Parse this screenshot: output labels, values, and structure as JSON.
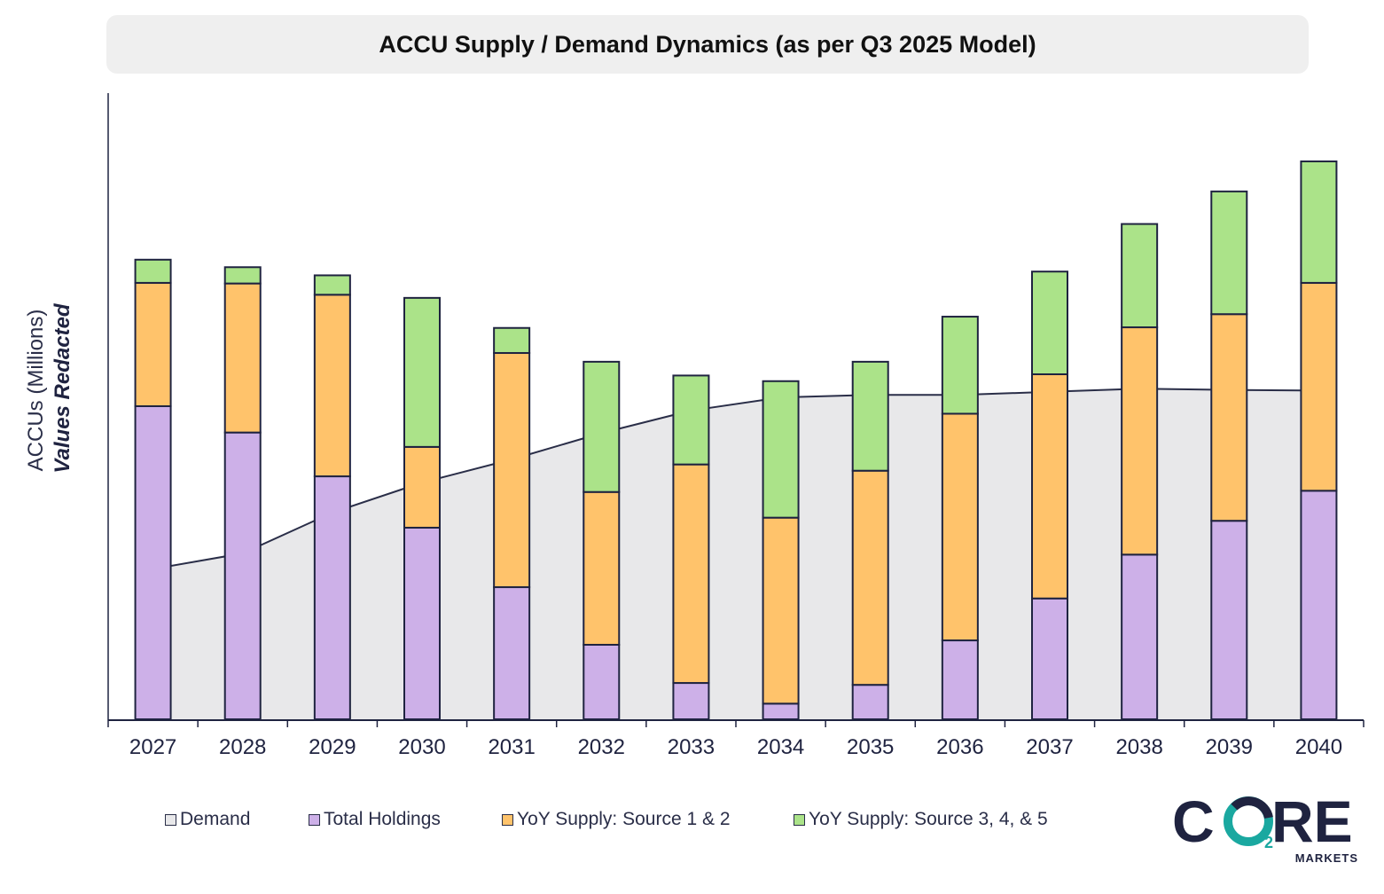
{
  "chart_data": {
    "type": "bar",
    "title": "ACCU Supply / Demand Dynamics (as per Q3 2025 Model)",
    "ylabel": "ACCUs (Millions)",
    "ylabel_note": "Values Redacted",
    "xlabel": "",
    "categories": [
      "2027",
      "2028",
      "2029",
      "2030",
      "2031",
      "2032",
      "2033",
      "2034",
      "2035",
      "2036",
      "2037",
      "2038",
      "2039",
      "2040"
    ],
    "ylim": [
      0,
      100
    ],
    "stacked": true,
    "series": [
      {
        "name": "Total Holdings",
        "color": "#cdb0e8",
        "values": [
          50.0,
          45.8,
          38.8,
          30.6,
          21.1,
          11.9,
          5.8,
          2.5,
          5.5,
          12.6,
          19.3,
          26.3,
          31.7,
          36.5
        ]
      },
      {
        "name": "YoY Supply: Source 1 & 2",
        "color": "#ffc36b",
        "values": [
          19.7,
          23.8,
          29.0,
          12.9,
          37.4,
          24.4,
          34.9,
          29.7,
          34.2,
          36.2,
          35.8,
          36.3,
          33.0,
          33.2
        ]
      },
      {
        "name": "YoY Supply: Source 3, 4, & 5",
        "color": "#abe389",
        "values": [
          3.7,
          2.6,
          3.1,
          23.8,
          4.0,
          20.8,
          14.2,
          21.8,
          17.4,
          15.5,
          16.4,
          16.5,
          19.6,
          19.4
        ]
      }
    ],
    "demand": {
      "name": "Demand",
      "color": "#e8e8ea",
      "values": [
        24.0,
        26.5,
        33.0,
        37.8,
        41.5,
        45.7,
        49.3,
        51.4,
        51.8,
        51.8,
        52.3,
        52.8,
        52.6,
        52.5
      ]
    },
    "legend": [
      "Demand",
      "Total Holdings",
      "YoY Supply: Source 1 & 2",
      "YoY Supply: Source 3, 4, & 5"
    ],
    "legend_position": "bottom",
    "grid": false
  },
  "logo": {
    "word_start": "C",
    "word_end": "RE",
    "subscript": "2",
    "tagline": "MARKETS"
  }
}
